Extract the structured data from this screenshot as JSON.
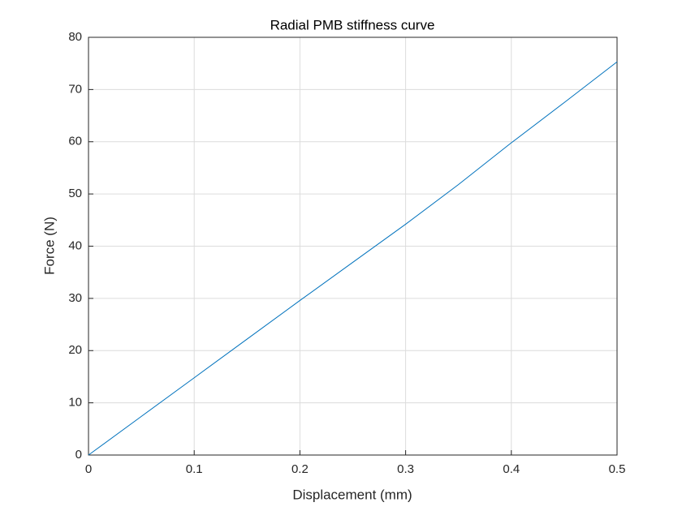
{
  "chart_data": {
    "type": "line",
    "title": "Radial PMB stiffness curve",
    "x_label": "Displacement (mm)",
    "y_label": "Force (N)",
    "x": [
      0,
      0.05,
      0.1,
      0.15,
      0.2,
      0.25,
      0.3,
      0.35,
      0.4,
      0.45,
      0.5
    ],
    "series": [
      {
        "color": "#0072bd",
        "values": [
          0,
          7.4,
          14.8,
          22.2,
          29.6,
          36.9,
          44.2,
          51.8,
          59.8,
          67.5,
          75.3
        ]
      }
    ],
    "xlim": [
      0,
      0.5
    ],
    "xticks": [
      0,
      0.1,
      0.2,
      0.3,
      0.4,
      0.5
    ],
    "ylim": [
      0,
      80
    ],
    "yticks": [
      0,
      10,
      20,
      30,
      40,
      50,
      60,
      70,
      80
    ],
    "grid": true
  }
}
